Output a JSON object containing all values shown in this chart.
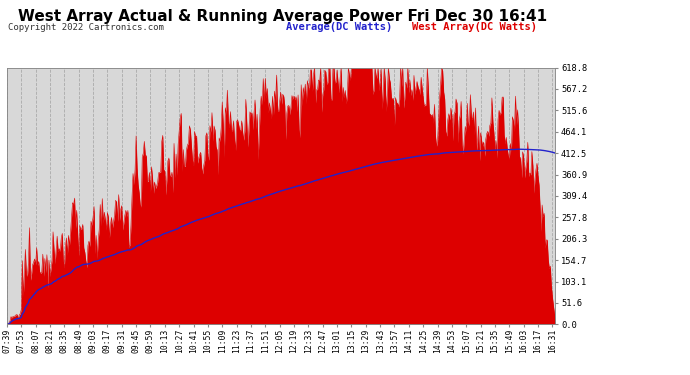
{
  "title": "West Array Actual & Running Average Power Fri Dec 30 16:41",
  "copyright": "Copyright 2022 Cartronics.com",
  "legend_avg": "Average(DC Watts)",
  "legend_west": "West Array(DC Watts)",
  "ylabel_right_ticks": [
    0.0,
    51.6,
    103.1,
    154.7,
    206.3,
    257.8,
    309.4,
    360.9,
    412.5,
    464.1,
    515.6,
    567.2,
    618.8
  ],
  "ymax": 618.8,
  "ymin": 0.0,
  "fig_bg_color": "#ffffff",
  "plot_bg_color": "#d8d8d8",
  "grid_color": "#aaaaaa",
  "bar_color": "#dd0000",
  "avg_line_color": "#2222cc",
  "tick_label_color": "#000000",
  "legend_avg_color": "#2222cc",
  "legend_west_color": "#dd0000",
  "title_fontsize": 11,
  "copyright_fontsize": 6.5,
  "legend_fontsize": 7.5,
  "tick_fontsize": 5.8
}
